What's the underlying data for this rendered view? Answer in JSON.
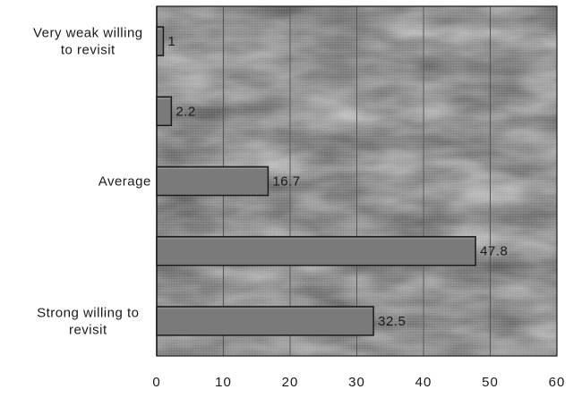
{
  "chart_data": {
    "type": "bar",
    "orientation": "horizontal",
    "categories": [
      [
        "Very weak willing",
        "to revisit"
      ],
      [],
      [
        "Average"
      ],
      [],
      [
        "Strong willing to",
        "revisit"
      ]
    ],
    "values": [
      1,
      2.2,
      16.7,
      47.8,
      32.5
    ],
    "data_labels": [
      "1",
      "2.2",
      "16.7",
      "47.8",
      "32.5"
    ],
    "xlim": [
      0,
      60
    ],
    "x_ticks": [
      0,
      10,
      20,
      30,
      40,
      50,
      60
    ],
    "grid": true,
    "legend": false,
    "title": "",
    "xlabel": "",
    "ylabel": "",
    "colors": {
      "plot_background": "#c4c4c4",
      "bar_fill": "#7a7a7a",
      "bar_stroke": "#1a1a1a",
      "gridline": "#555555",
      "axis": "#1a1a1a"
    }
  }
}
